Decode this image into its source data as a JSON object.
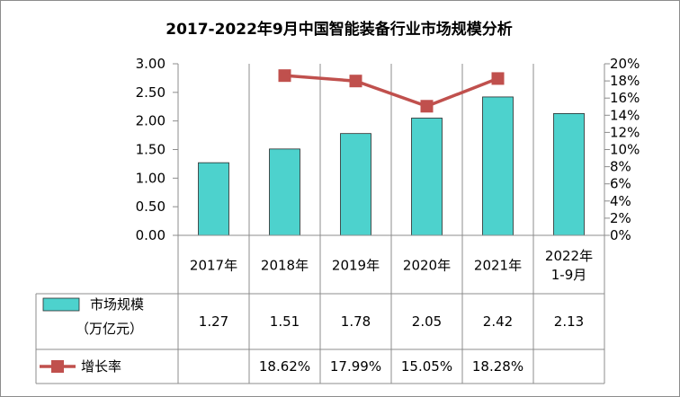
{
  "chart_data": {
    "type": "bar",
    "title": "2017-2022年9月中国智能装备行业市场规模分析",
    "categories": [
      "2017年",
      "2018年",
      "2019年",
      "2020年",
      "2021年",
      "2022年1-9月"
    ],
    "category_lines": [
      [
        "2017年"
      ],
      [
        "2018年"
      ],
      [
        "2019年"
      ],
      [
        "2020年"
      ],
      [
        "2021年"
      ],
      [
        "2022年",
        "1-9月"
      ]
    ],
    "series": [
      {
        "name": "市场规模（万亿元）",
        "name_lines": [
          "市场规模",
          "（万亿元）"
        ],
        "type": "bar",
        "axis": "left",
        "values": [
          1.27,
          1.51,
          1.78,
          2.05,
          2.42,
          2.13
        ],
        "labels": [
          "1.27",
          "1.51",
          "1.78",
          "2.05",
          "2.42",
          "2.13"
        ],
        "color": "#4DD2CD"
      },
      {
        "name": "增长率",
        "type": "line",
        "axis": "right",
        "values": [
          null,
          18.62,
          17.99,
          15.05,
          18.28,
          null
        ],
        "labels": [
          "",
          "18.62%",
          "17.99%",
          "15.05%",
          "18.28%",
          ""
        ],
        "color": "#C0504D"
      }
    ],
    "y_left": {
      "ylim": [
        0,
        3
      ],
      "ticks": [
        "0.00",
        "0.50",
        "1.00",
        "1.50",
        "2.00",
        "2.50",
        "3.00"
      ]
    },
    "y_right": {
      "ylim": [
        0,
        20
      ],
      "ticks": [
        "0%",
        "2%",
        "4%",
        "6%",
        "8%",
        "10%",
        "12%",
        "14%",
        "16%",
        "18%",
        "20%"
      ]
    },
    "grid": "vertical category lines",
    "legend": "data table below chart"
  }
}
